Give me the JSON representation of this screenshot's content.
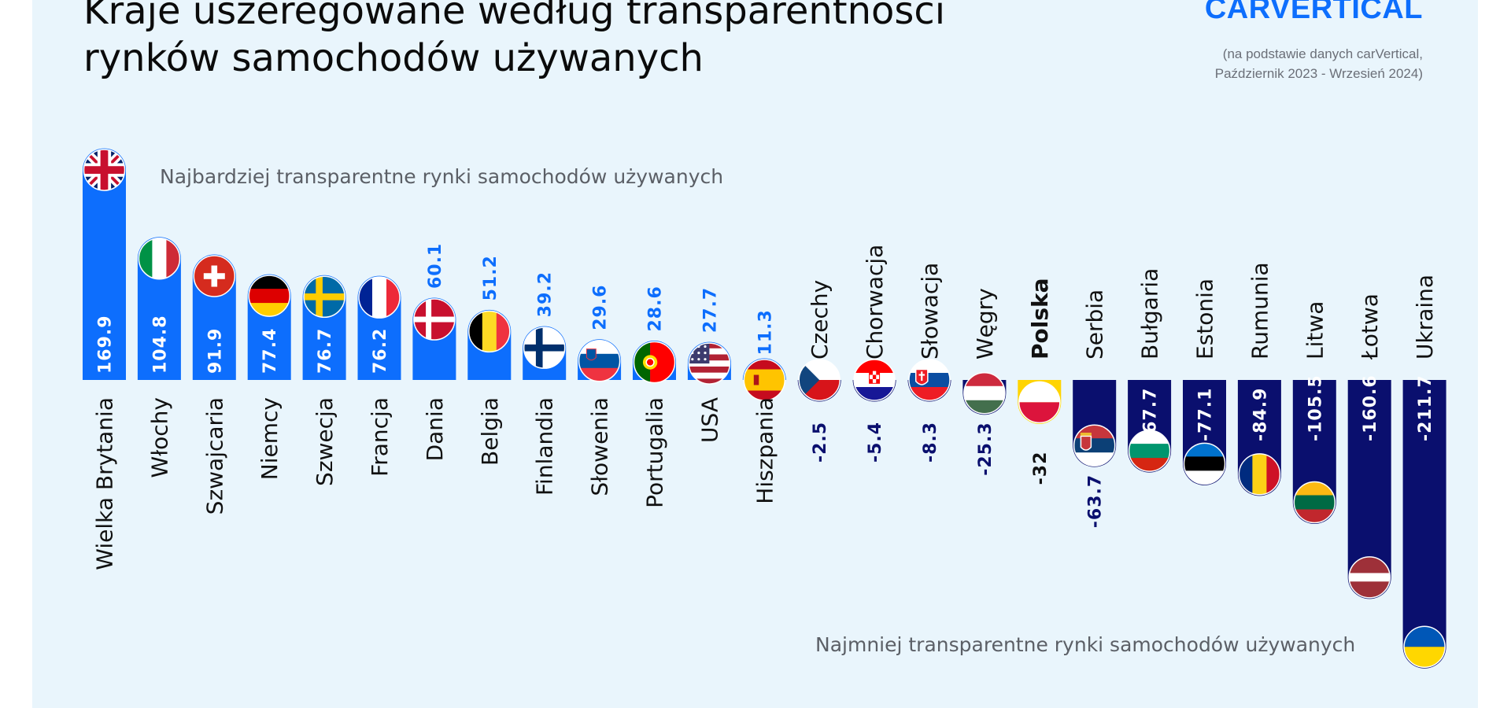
{
  "header": {
    "title": "Kraje uszeregowane według transparentności rynków samochodów używanych",
    "brand": "CARVERTICAL",
    "source_line1": "(na podstawie danych carVertical,",
    "source_line2": "Październik 2023 - Wrzesień 2024)"
  },
  "colors": {
    "positive": "#0d6efd",
    "negative": "#0a0f6e",
    "panel": "#e9f5fc",
    "highlight": "#ffd400"
  },
  "chart_data": {
    "type": "bar",
    "title": "Kraje uszeregowane według transparentności rynków samochodów używanych",
    "top_note": "Najbardziej transparentne rynki samochodów używanych",
    "bottom_note": "Najmniej transparentne rynki samochodów używanych",
    "categories": [
      "Wielka Brytania",
      "Włochy",
      "Szwajcaria",
      "Niemcy",
      "Szwecja",
      "Francja",
      "Dania",
      "Belgia",
      "Finlandia",
      "Słowenia",
      "Portugalia",
      "USA",
      "Hiszpania",
      "Czechy",
      "Chorwacja",
      "Słowacja",
      "Węgry",
      "Polska",
      "Serbia",
      "Bułgaria",
      "Estonia",
      "Rumunia",
      "Litwa",
      "Łotwa",
      "Ukraina"
    ],
    "values": [
      169.9,
      104.8,
      91.9,
      77.4,
      76.7,
      76.2,
      60.1,
      51.2,
      39.2,
      29.6,
      28.6,
      27.7,
      11.3,
      -2.5,
      -5.4,
      -8.3,
      -25.3,
      -32,
      -63.7,
      -67.7,
      -77.1,
      -84.9,
      -105.5,
      -160.6,
      -211.7
    ],
    "value_labels": [
      "169.9",
      "104.8",
      "91.9",
      "77.4",
      "76.7",
      "76.2",
      "60.1",
      "51.2",
      "39.2",
      "29.6",
      "28.6",
      "27.7",
      "11.3",
      "-2.5",
      "-5.4",
      "-8.3",
      "-25.3",
      "-32",
      "-63.7",
      "-67.7",
      "-77.1",
      "-84.9",
      "-105.5",
      "-160.6",
      "-211.7"
    ],
    "flags": [
      "uk-flag-icon",
      "italy-flag-icon",
      "switzerland-flag-icon",
      "germany-flag-icon",
      "sweden-flag-icon",
      "france-flag-icon",
      "denmark-flag-icon",
      "belgium-flag-icon",
      "finland-flag-icon",
      "slovenia-flag-icon",
      "portugal-flag-icon",
      "usa-flag-icon",
      "spain-flag-icon",
      "czechia-flag-icon",
      "croatia-flag-icon",
      "slovakia-flag-icon",
      "hungary-flag-icon",
      "poland-flag-icon",
      "serbia-flag-icon",
      "bulgaria-flag-icon",
      "estonia-flag-icon",
      "romania-flag-icon",
      "lithuania-flag-icon",
      "latvia-flag-icon",
      "ukraine-flag-icon"
    ],
    "highlight": "Polska",
    "grid": false,
    "legend": "none"
  }
}
